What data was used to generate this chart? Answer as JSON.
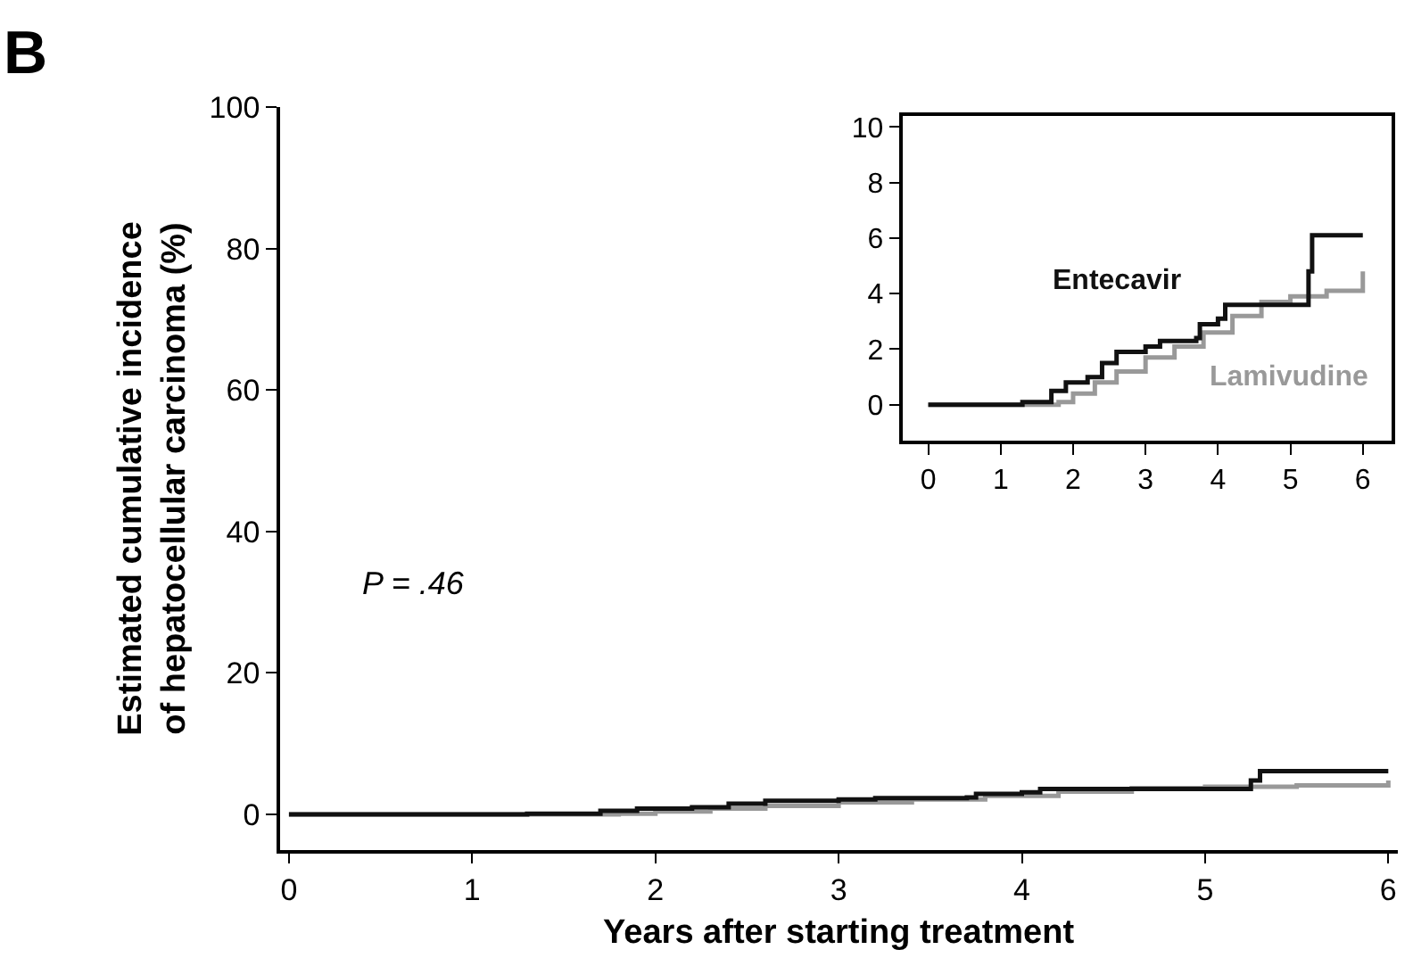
{
  "chart_data": [
    {
      "type": "step",
      "title": "B",
      "xlabel": "Years after starting treatment",
      "ylabel": "Estimated cumulative incidence\nof hepatocellular carcinoma (%)",
      "annotations": [
        "P = .46"
      ],
      "xlim": [
        -0.05,
        6.05
      ],
      "ylim": [
        -5,
        100
      ],
      "xticks": [
        0,
        1,
        2,
        3,
        4,
        5,
        6
      ],
      "yticks": [
        0,
        20,
        40,
        60,
        80,
        100
      ],
      "series": [
        {
          "color": "#999999",
          "x": [
            0,
            1.8,
            2.0,
            2.3,
            2.6,
            3.0,
            3.4,
            3.8,
            4.2,
            4.6,
            5.0,
            5.5,
            6.0
          ],
          "values": [
            0,
            0.1,
            0.4,
            0.8,
            1.2,
            1.7,
            2.1,
            2.6,
            3.2,
            3.7,
            3.9,
            4.1,
            4.8
          ]
        },
        {
          "color": "#111111",
          "x": [
            0,
            1.3,
            1.7,
            1.9,
            2.2,
            2.4,
            2.6,
            3.0,
            3.2,
            3.7,
            3.75,
            4.0,
            4.1,
            5.25,
            5.3,
            6.0
          ],
          "values": [
            0,
            0.1,
            0.5,
            0.8,
            1.0,
            1.5,
            1.9,
            2.1,
            2.3,
            2.4,
            2.9,
            3.1,
            3.6,
            4.8,
            6.1,
            6.1
          ]
        }
      ]
    },
    {
      "type": "step",
      "xlim": [
        -0.35,
        6.4
      ],
      "ylim": [
        -1.3,
        10.4
      ],
      "xticks": [
        0,
        1,
        2,
        3,
        4,
        5,
        6
      ],
      "yticks": [
        0,
        2,
        4,
        6,
        8,
        10
      ],
      "series": [
        {
          "name": "Lamivudine",
          "color": "#999999",
          "x": [
            0,
            1.8,
            2.0,
            2.3,
            2.6,
            3.0,
            3.4,
            3.8,
            4.2,
            4.6,
            5.0,
            5.5,
            6.0
          ],
          "values": [
            0,
            0.1,
            0.4,
            0.8,
            1.2,
            1.7,
            2.1,
            2.6,
            3.2,
            3.7,
            3.9,
            4.1,
            4.8
          ]
        },
        {
          "name": "Entecavir",
          "color": "#111111",
          "x": [
            0,
            1.3,
            1.7,
            1.9,
            2.2,
            2.4,
            2.6,
            3.0,
            3.2,
            3.7,
            3.75,
            4.0,
            4.1,
            5.25,
            5.3,
            6.0
          ],
          "values": [
            0,
            0.1,
            0.5,
            0.8,
            1.0,
            1.5,
            1.9,
            2.1,
            2.3,
            2.4,
            2.9,
            3.1,
            3.6,
            4.8,
            6.1,
            6.1
          ]
        }
      ]
    }
  ]
}
